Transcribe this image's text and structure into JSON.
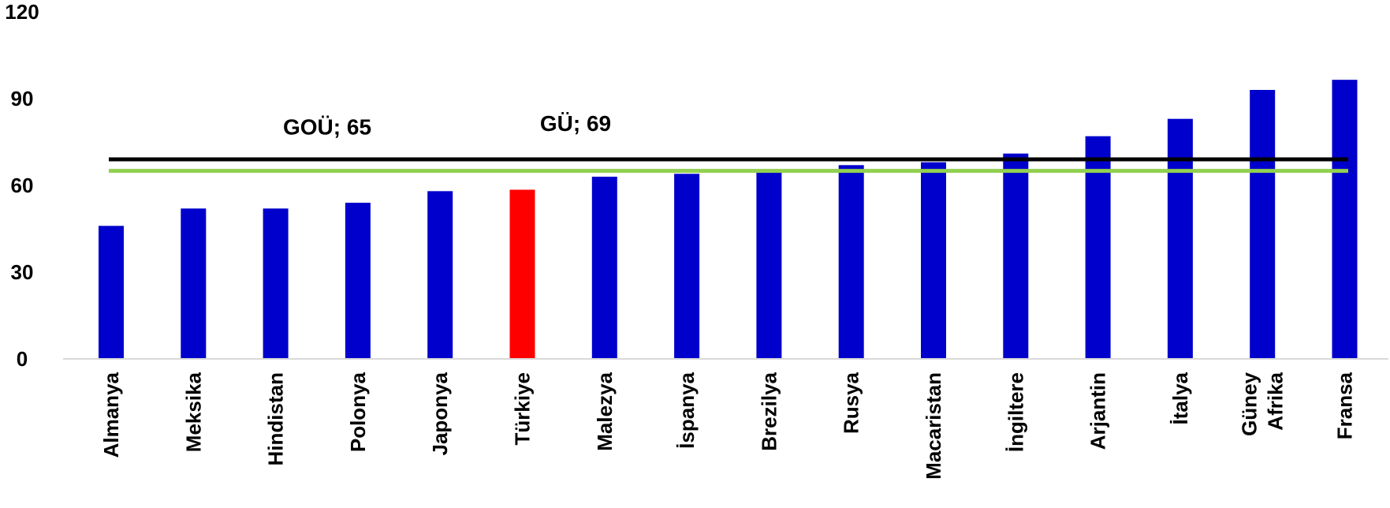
{
  "chart_data": {
    "type": "bar",
    "title": "",
    "xlabel": "",
    "ylabel": "",
    "ylim": [
      0,
      120
    ],
    "yticks": [
      0,
      30,
      60,
      90,
      120
    ],
    "grid": false,
    "categories": [
      "Almanya",
      "Meksika",
      "Hindistan",
      "Polonya",
      "Japonya",
      "Türkiye",
      "Malezya",
      "İspanya",
      "Brezilya",
      "Rusya",
      "Macaristan",
      "İngiltere",
      "Arjantin",
      "İtalya",
      "Güney\nAfrika",
      "Fransa"
    ],
    "values": [
      46,
      52,
      52,
      54,
      58,
      58.5,
      63,
      64,
      64.5,
      67,
      68,
      71,
      77,
      83,
      93,
      96.5
    ],
    "highlight": {
      "category": "Türkiye",
      "color": "#ff0000"
    },
    "bar_color": "#0000cc",
    "reference_lines": [
      {
        "label": "GOÜ; 65",
        "value": 65,
        "color": "#92d050"
      },
      {
        "label": "GÜ; 69",
        "value": 69,
        "color": "#000000"
      }
    ]
  }
}
